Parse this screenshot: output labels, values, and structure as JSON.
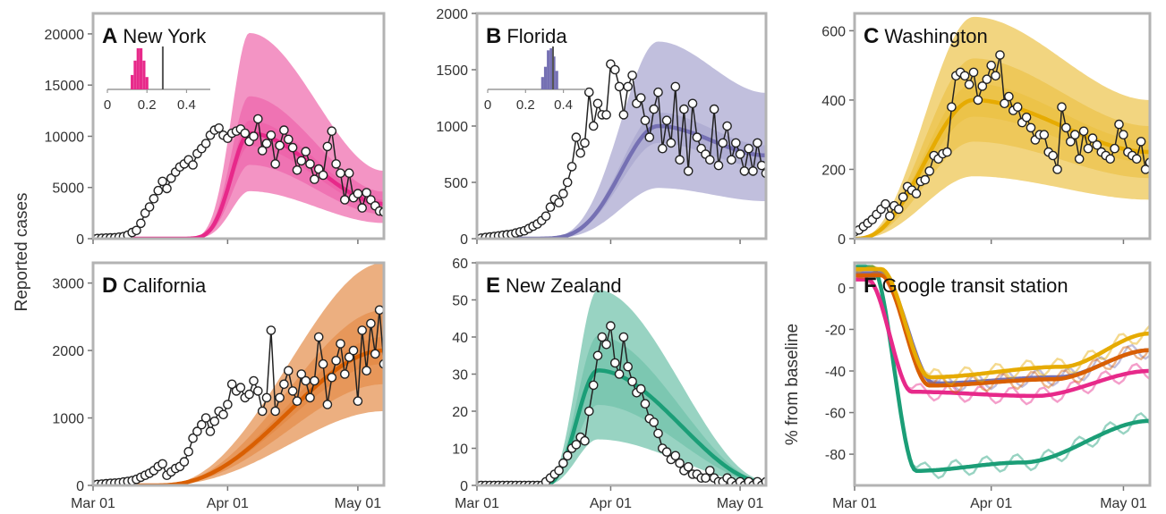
{
  "colors": {
    "ny": "#e7298a",
    "fl": "#7570b3",
    "wa": "#e6ab02",
    "ca": "#d95f02",
    "nz": "#1b9e77",
    "obs": "#222222",
    "frame": "#b3b3b3",
    "inset_ref": "#555555"
  },
  "y_title_left": "Reported cases",
  "y_title_right": "% from baseline",
  "x_tick_labels": [
    "Mar 01",
    "Apr 01",
    "May 01"
  ],
  "chart_data": [
    {
      "panel": "A",
      "title": "New York",
      "type": "line",
      "color_key": "ny",
      "ylim": [
        0,
        22000
      ],
      "y_ticks": [
        0,
        5000,
        10000,
        15000,
        20000
      ],
      "x_days": [
        0,
        31,
        61
      ],
      "x_end_day": 67,
      "fit": {
        "start": 17,
        "peak_day": 36,
        "peak": 10300,
        "end_value": 3400,
        "rise_sharp": 4,
        "bands": [
          {
            "lo": 0.88,
            "hi": 1.12
          },
          {
            "lo": 0.7,
            "hi": 1.35
          },
          {
            "lo": 0.45,
            "hi": 1.95
          }
        ]
      },
      "observed": [
        0,
        20,
        40,
        60,
        80,
        100,
        150,
        200,
        350,
        600,
        800,
        1500,
        2500,
        3100,
        3900,
        4700,
        5600,
        4900,
        5900,
        6500,
        7000,
        7300,
        7700,
        7200,
        8300,
        8800,
        9300,
        10100,
        10600,
        10800,
        10100,
        9800,
        10300,
        10500,
        10700,
        10300,
        9500,
        10000,
        11700,
        8600,
        9300,
        10100,
        7300,
        9100,
        10600,
        9700,
        8900,
        6700,
        7600,
        8500,
        7300,
        5800,
        6800,
        6200,
        9000,
        10500,
        7300,
        6400,
        3800,
        6400,
        4000,
        4400,
        3000,
        4500,
        3800,
        3200,
        2700,
        2600,
        3600
      ],
      "inset": {
        "ticks": [
          0,
          0.2,
          0.4
        ],
        "lim": [
          0,
          0.52
        ],
        "ref": 0.28,
        "hist": [
          {
            "x": 0.125,
            "v": 0.35
          },
          {
            "x": 0.14,
            "v": 0.7
          },
          {
            "x": 0.155,
            "v": 1.0
          },
          {
            "x": 0.17,
            "v": 1.0
          },
          {
            "x": 0.185,
            "v": 0.7
          },
          {
            "x": 0.2,
            "v": 0.3
          }
        ]
      }
    },
    {
      "panel": "B",
      "title": "Florida",
      "type": "line",
      "color_key": "fl",
      "ylim": [
        0,
        2000
      ],
      "y_ticks": [
        0,
        500,
        1000,
        1500,
        2000
      ],
      "x_days": [
        0,
        31,
        61
      ],
      "x_end_day": 67,
      "fit": {
        "start": 11,
        "peak_day": 42,
        "peak": 1000,
        "end_value": 740,
        "rise_sharp": 2.5,
        "bands": [
          {
            "lo": 0.85,
            "hi": 1.12
          },
          {
            "lo": 0.45,
            "hi": 1.75
          }
        ]
      },
      "observed": [
        0,
        5,
        10,
        15,
        20,
        25,
        30,
        35,
        40,
        50,
        60,
        70,
        90,
        110,
        130,
        160,
        200,
        280,
        350,
        320,
        400,
        500,
        640,
        900,
        760,
        850,
        1300,
        1000,
        1200,
        1100,
        1100,
        1550,
        1500,
        1350,
        1100,
        1350,
        1450,
        1200,
        1250,
        1050,
        900,
        1150,
        1300,
        800,
        1050,
        850,
        1350,
        700,
        1150,
        600,
        1200,
        900,
        800,
        750,
        700,
        1150,
        650,
        850,
        1000,
        700,
        850,
        750,
        600,
        800,
        600,
        850,
        650,
        580,
        800
      ],
      "inset": {
        "ticks": [
          0,
          0.2,
          0.4
        ],
        "lim": [
          0,
          0.52
        ],
        "ref": 0.345,
        "hist": [
          {
            "x": 0.29,
            "v": 0.3
          },
          {
            "x": 0.305,
            "v": 0.55
          },
          {
            "x": 0.32,
            "v": 0.95
          },
          {
            "x": 0.335,
            "v": 1.0
          },
          {
            "x": 0.35,
            "v": 0.8
          },
          {
            "x": 0.365,
            "v": 0.45
          }
        ]
      }
    },
    {
      "panel": "C",
      "title": "Washington",
      "type": "line",
      "color_key": "wa",
      "ylim": [
        0,
        650
      ],
      "y_ticks": [
        0,
        200,
        400,
        600
      ],
      "x_days": [
        0,
        31,
        61
      ],
      "x_end_day": 67,
      "fit": {
        "start": 0,
        "peak_day": 27,
        "peak": 400,
        "end_value": 250,
        "rise_sharp": 1.3,
        "bands": [
          {
            "lo": 0.88,
            "hi": 1.12
          },
          {
            "lo": 0.7,
            "hi": 1.3
          },
          {
            "lo": 0.45,
            "hi": 1.6
          }
        ]
      },
      "observed": [
        20,
        25,
        35,
        45,
        55,
        70,
        85,
        100,
        65,
        95,
        85,
        120,
        150,
        140,
        130,
        165,
        170,
        195,
        240,
        230,
        245,
        250,
        380,
        470,
        480,
        470,
        445,
        480,
        400,
        440,
        460,
        500,
        470,
        530,
        390,
        410,
        370,
        380,
        335,
        350,
        320,
        285,
        300,
        300,
        250,
        240,
        200,
        380,
        320,
        280,
        300,
        230,
        310,
        260,
        290,
        270,
        250,
        240,
        230,
        260,
        330,
        300,
        250,
        240,
        230,
        280,
        200,
        220,
        180
      ]
    },
    {
      "panel": "D",
      "title": "California",
      "type": "line",
      "color_key": "ca",
      "ylim": [
        0,
        3300
      ],
      "y_ticks": [
        0,
        1000,
        2000,
        3000
      ],
      "x_days": [
        0,
        31,
        61
      ],
      "x_end_day": 67,
      "fit": {
        "start": 14,
        "peak_day": 67,
        "peak": 2000,
        "end_value": 2000,
        "rise_sharp": 1.3,
        "bands": [
          {
            "lo": 0.9,
            "hi": 1.1
          },
          {
            "lo": 0.75,
            "hi": 1.3
          },
          {
            "lo": 0.55,
            "hi": 1.65
          }
        ]
      },
      "observed": [
        10,
        15,
        20,
        25,
        30,
        35,
        40,
        50,
        60,
        70,
        90,
        120,
        150,
        180,
        220,
        280,
        320,
        150,
        200,
        250,
        280,
        350,
        500,
        700,
        800,
        900,
        1000,
        800,
        950,
        1100,
        1050,
        1200,
        1500,
        1400,
        1450,
        1300,
        1350,
        1550,
        1400,
        1100,
        1300,
        2300,
        1100,
        1300,
        1500,
        1700,
        1400,
        1250,
        1650,
        1550,
        1300,
        1550,
        2200,
        1800,
        1200,
        1600,
        1850,
        2100,
        1650,
        1900,
        2000,
        1250,
        2300,
        1700,
        2400,
        1950,
        2600,
        1800,
        1400
      ]
    },
    {
      "panel": "E",
      "title": "New Zealand",
      "type": "line",
      "color_key": "nz",
      "ylim": [
        0,
        60
      ],
      "y_ticks": [
        0,
        10,
        20,
        30,
        40,
        50,
        60
      ],
      "x_days": [
        0,
        31,
        61
      ],
      "x_end_day": 67,
      "fit": {
        "start": 15,
        "peak_day": 28,
        "peak": 31,
        "end_value": 0.8,
        "rise_sharp": 1.5,
        "bands": [
          {
            "lo": 0.7,
            "hi": 1.3
          },
          {
            "lo": 0.4,
            "hi": 1.7
          }
        ]
      },
      "observed": [
        0,
        0,
        0,
        0,
        0,
        0,
        0,
        0,
        0,
        0,
        0,
        0,
        0,
        0,
        0,
        0,
        1,
        2,
        3,
        4,
        6,
        8,
        10,
        11,
        13,
        12,
        20,
        27,
        35,
        40,
        38,
        43,
        33,
        30,
        40,
        32,
        28,
        25,
        26,
        22,
        18,
        17,
        14,
        10,
        9,
        7,
        8,
        6,
        4,
        5,
        3,
        3,
        2,
        2,
        4,
        2,
        1,
        1,
        2,
        1,
        0,
        1,
        0,
        1,
        0,
        1,
        0,
        1,
        0
      ]
    },
    {
      "panel": "F",
      "title": "Google transit station",
      "type": "line",
      "y_percent": true,
      "ylim": [
        -95,
        12
      ],
      "y_ticks": [
        -80,
        -60,
        -40,
        -20,
        0
      ],
      "x_days": [
        0,
        31,
        61
      ],
      "x_end_day": 67,
      "series": [
        {
          "color_key": "nz",
          "start": 10,
          "pre": 4,
          "p1": 10,
          "p2": 24,
          "v1": -88,
          "v2": -84,
          "v3": -64,
          "end_day": 67
        },
        {
          "color_key": "ny",
          "start": 4,
          "pre": 3,
          "p1": 10,
          "p2": 28,
          "v1": -50,
          "v2": -52,
          "v3": -40,
          "end_day": 67
        },
        {
          "color_key": "fl",
          "start": 7,
          "pre": 6,
          "p1": 12,
          "p2": 28,
          "v1": -46,
          "v2": -43,
          "v3": -30,
          "end_day": 67
        },
        {
          "color_key": "ca",
          "start": 6,
          "pre": 6,
          "p1": 11,
          "p2": 28,
          "v1": -47,
          "v2": -44,
          "v3": -30,
          "end_day": 67
        },
        {
          "color_key": "wa",
          "start": 9,
          "pre": 6,
          "p1": 11,
          "p2": 30,
          "v1": -43,
          "v2": -38,
          "v3": -22,
          "end_day": 67
        }
      ]
    }
  ]
}
